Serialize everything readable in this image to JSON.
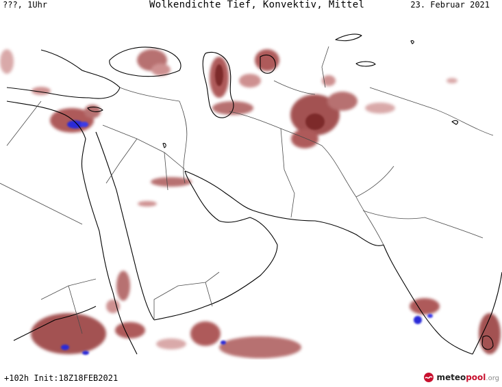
{
  "header": {
    "left": "???, 1Uhr",
    "title": "Wolkendichte  Tief, Konvektiv, Mittel",
    "right": "23. Februar 2021"
  },
  "footer": {
    "left": "+102h Init:18Z18FEB2021"
  },
  "brand": {
    "name_main": "meteo",
    "name_accent": "pool",
    "tld": ".org"
  },
  "colors": {
    "cloud_light": "#e8cccc",
    "cloud_mid": "#c98585",
    "cloud_dense": "#8e3535",
    "cloud_peak": "#2a2ad8",
    "coastline": "#000000",
    "border": "#4a4a4a"
  },
  "icons": {
    "brand_logo": "meteopool-logo-icon"
  }
}
